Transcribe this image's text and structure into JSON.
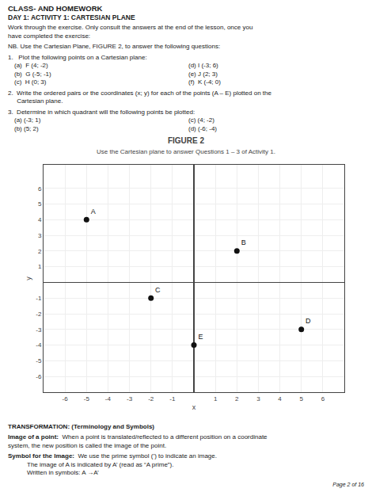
{
  "chart_data": {
    "type": "scatter",
    "title": "FIGURE 2",
    "subtitle": "Use the Cartesian plane to answer Questions 1 – 3 of Activity 1.",
    "x_label": "x",
    "y_label": "y",
    "x": [
      -5,
      2,
      -2,
      5,
      0
    ],
    "y": [
      4,
      2,
      -1,
      -3,
      -4
    ],
    "labels": [
      "A",
      "B",
      "C",
      "D",
      "E"
    ],
    "color": "#111111",
    "xlim": [
      -7.0,
      7.0
    ],
    "ylim": [
      -7.0,
      7.5
    ],
    "xticks": [
      -6,
      -5,
      -4,
      -3,
      -2,
      -1,
      1,
      2,
      3,
      4,
      5,
      6
    ],
    "yticks": [
      -6,
      -5,
      -4,
      -3,
      -2,
      -1,
      1,
      2,
      3,
      4,
      5,
      6
    ],
    "grid": true,
    "annotations": [
      "CLASS- AND HOMEWORK",
      "DAY 1: ACTIVITY 1: CARTESIAN PLANE",
      "Work through the exercise. Only consult the answers at the end of the lesson, once you\nhave completed the exercise:",
      "NB. Use the Cartesian Plane, FIGURE 2, to answer the following questions:",
      "1.   Plot the following points on a Cartesian plane:",
      "(a)  F (4; -2)",
      "(b)  G (-5; -1)",
      "(c)  H (0; 3)",
      "(d) I (-3; 6)",
      "(e) J (2; 3)",
      "(f)  K (-4; 0)",
      "2.  Write the ordered pairs or the coordinates (x; y) for each of the points (A – E) plotted on the\n     Cartesian plane.",
      "3.  Determine in which quadrant will the following points be plotted:",
      "(a) (-3; 1)",
      "(b) (5; 2)",
      "(c) (4; -2)",
      "(d) (-6; -4)",
      "TRANSFORMATION: (Terminology and Symbols)",
      "Image of a point:",
      "  When a point is translated/reflected to a different position on a coordinate",
      "system, the new position is called the image of the point.",
      "Symbol for the Image:",
      "  We use the prime symbol (’) to indicate an image.",
      "The image of A is indicated by A’ (read as “A prime”).",
      "Written in symbols: A →A’",
      "Page 2 of 16"
    ]
  }
}
